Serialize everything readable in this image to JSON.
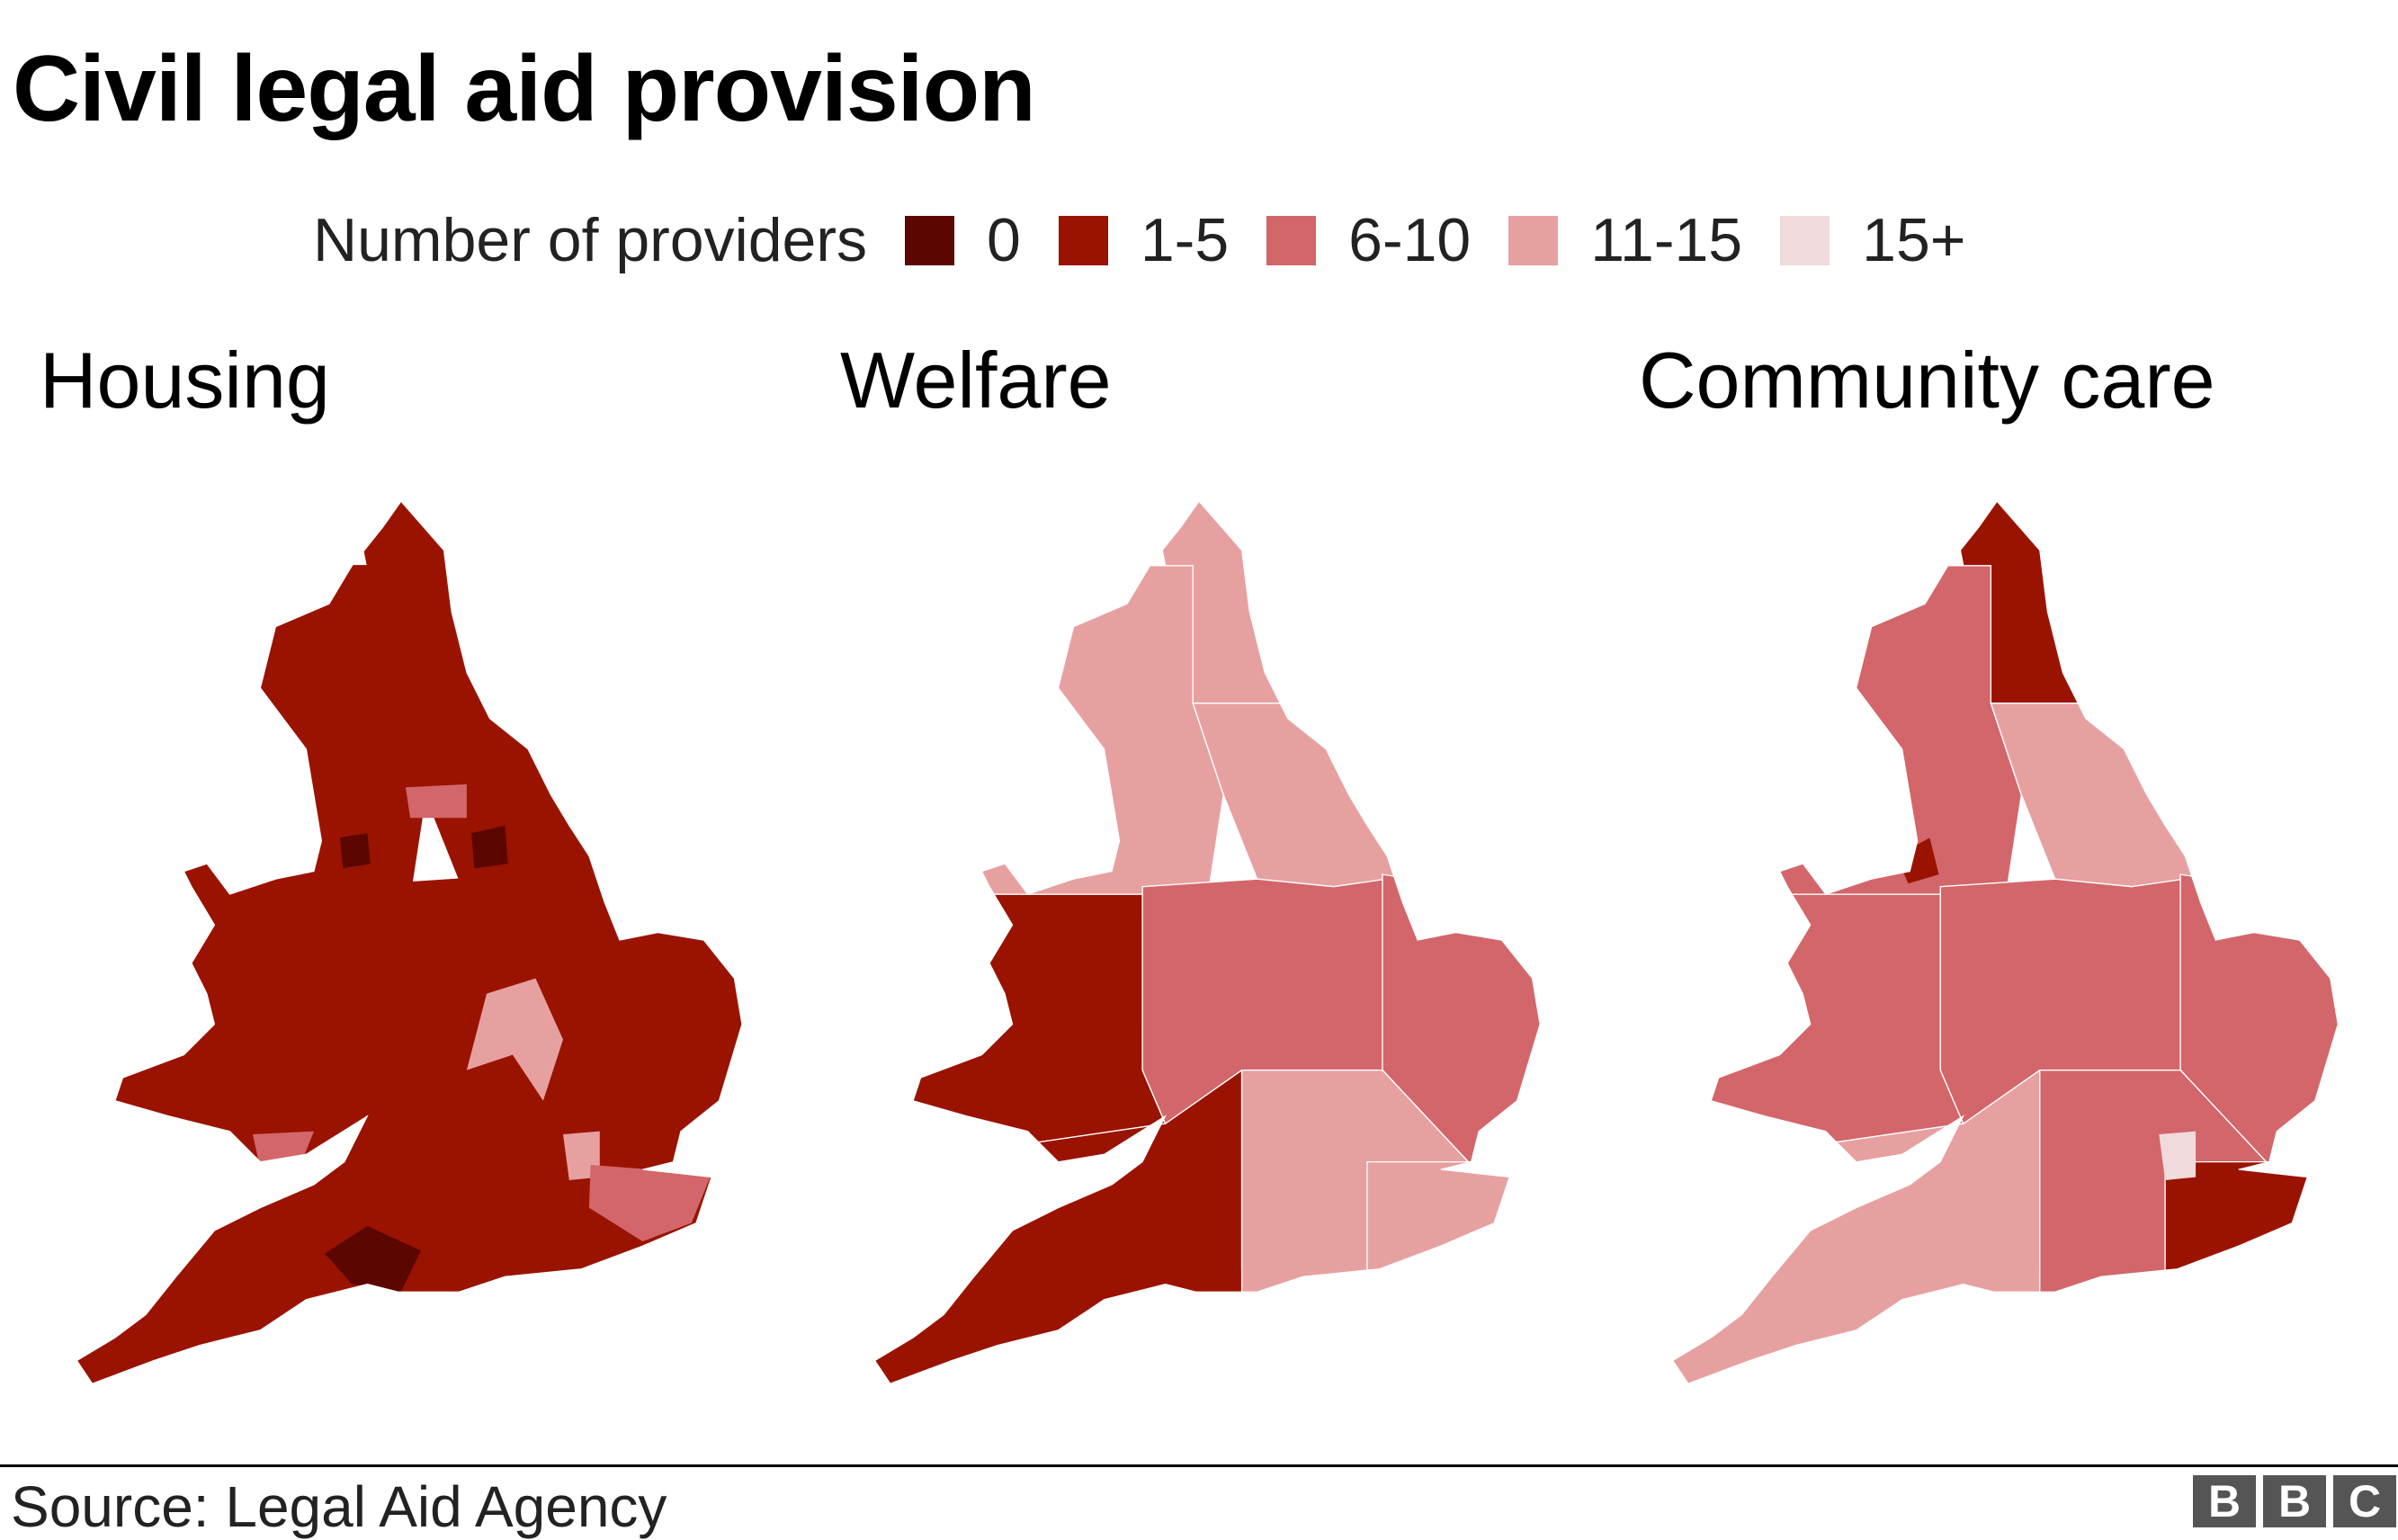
{
  "title": "Civil legal aid provision",
  "legend": {
    "label": "Number of providers",
    "items": [
      {
        "label": "0",
        "color": "#5c0600"
      },
      {
        "label": "1-5",
        "color": "#9a1300"
      },
      {
        "label": "6-10",
        "color": "#d3666a"
      },
      {
        "label": "11-15",
        "color": "#e7a0a0"
      },
      {
        "label": "15+",
        "color": "#f0dadb"
      }
    ]
  },
  "chart_data": {
    "type": "choropleth",
    "title": "Civil legal aid provision",
    "legend_title": "Number of providers",
    "categories": [
      "0",
      "1-5",
      "6-10",
      "11-15",
      "15+"
    ],
    "panels": [
      {
        "title": "Housing",
        "regions": {
          "north_east": "1-5",
          "north_west": "1-5",
          "yorkshire": "1-5",
          "wales": "1-5",
          "midlands": "1-5",
          "east": "1-5",
          "southwest": "1-5",
          "south_east": "1-5",
          "kent_sussex": "1-5"
        },
        "local_areas": [
          {
            "area": "west_yorkshire_part",
            "category": "6-10"
          },
          {
            "area": "manchester_part",
            "category": "0"
          },
          {
            "area": "york_part",
            "category": "0"
          },
          {
            "area": "oxfordshire_part",
            "category": "11-15"
          },
          {
            "area": "london_part",
            "category": "11-15"
          },
          {
            "area": "kent_part",
            "category": "6-10"
          },
          {
            "area": "dorset_part",
            "category": "0"
          },
          {
            "area": "bristol_part",
            "category": "6-10"
          }
        ]
      },
      {
        "title": "Welfare",
        "regions": {
          "north_east": "11-15",
          "north_west": "11-15",
          "yorkshire": "11-15",
          "wales": "1-5",
          "midlands": "6-10",
          "east": "6-10",
          "southwest": "1-5",
          "south_east": "11-15",
          "kent_sussex": "11-15"
        },
        "local_areas": []
      },
      {
        "title": "Community care",
        "regions": {
          "north_east": "1-5",
          "north_west": "6-10",
          "yorkshire": "11-15",
          "wales": "6-10",
          "midlands": "6-10",
          "east": "6-10",
          "southwest": "11-15",
          "south_east": "6-10",
          "kent_sussex": "1-5"
        },
        "local_areas": [
          {
            "area": "london_part",
            "category": "15+"
          },
          {
            "area": "liverpool_part",
            "category": "1-5"
          }
        ]
      }
    ]
  },
  "source": "Source: Legal Aid Agency",
  "logo": "BBC"
}
